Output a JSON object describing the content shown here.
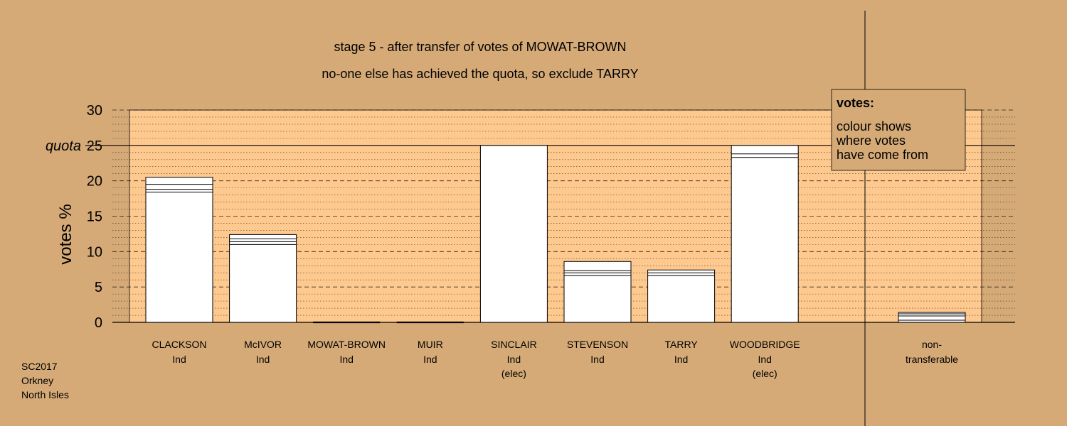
{
  "chart_data": {
    "type": "bar",
    "title_lines": [
      "stage 5 - after transfer of votes of MOWAT-BROWN",
      "no-one else has achieved the quota, so exclude TARRY"
    ],
    "ylabel": "votes %",
    "ylim": [
      0,
      30
    ],
    "yticks": [
      "0",
      "5",
      "10",
      "15",
      "20",
      "25",
      "30"
    ],
    "quota": {
      "label": "quota",
      "value": 25
    },
    "grid": true,
    "legend": {
      "position": "top-right",
      "title": "votes:",
      "lines": [
        "colour shows",
        "where votes",
        "have come from"
      ]
    },
    "candidates": [
      {
        "name": "CLACKSON",
        "party": "Ind",
        "status": "",
        "value": 20.5,
        "dividers": [
          18.4,
          18.8,
          19.5
        ]
      },
      {
        "name": "McIVOR",
        "party": "Ind",
        "status": "",
        "value": 12.4,
        "dividers": [
          11.0,
          11.4,
          11.8
        ]
      },
      {
        "name": "MOWAT-BROWN",
        "party": "Ind",
        "status": "",
        "value": 0,
        "dividers": []
      },
      {
        "name": "MUIR",
        "party": "Ind",
        "status": "",
        "value": 0,
        "dividers": []
      },
      {
        "name": "SINCLAIR",
        "party": "Ind",
        "status": "(elec)",
        "value": 25.0,
        "dividers": []
      },
      {
        "name": "STEVENSON",
        "party": "Ind",
        "status": "",
        "value": 8.6,
        "dividers": [
          6.6,
          7.0,
          7.3
        ]
      },
      {
        "name": "TARRY",
        "party": "Ind",
        "status": "",
        "value": 7.4,
        "dividers": [
          6.6,
          7.0
        ]
      },
      {
        "name": "WOODBRIDGE",
        "party": "Ind",
        "status": "(elec)",
        "value": 25.0,
        "dividers": [
          23.3,
          23.8
        ]
      }
    ],
    "non_transferable": {
      "line1": "non-",
      "line2": "transferable",
      "value": 1.4,
      "dividers": [
        0.3,
        0.9,
        1.2
      ]
    }
  },
  "footer": [
    "SC2017",
    "Orkney",
    "North Isles"
  ],
  "colors": {
    "background": "#d5aa77",
    "plot_area": "#fec98f",
    "bar_fill": "#ffffff",
    "legend_fill": "#d5aa77"
  }
}
